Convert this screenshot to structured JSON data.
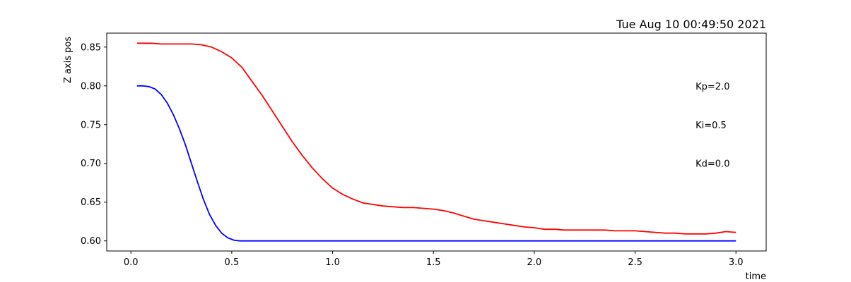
{
  "chart_data": {
    "type": "line",
    "title": "Tue Aug 10 00:49:50 2021",
    "xlabel": "time",
    "ylabel": "Z axis pos",
    "xlim": [
      -0.12,
      3.15
    ],
    "ylim": [
      0.587,
      0.868
    ],
    "xticks": [
      "0.0",
      "0.5",
      "1.0",
      "1.5",
      "2.0",
      "2.5",
      "3.0"
    ],
    "yticks": [
      "0.60",
      "0.65",
      "0.70",
      "0.75",
      "0.80",
      "0.85"
    ],
    "grid": false,
    "annotations": [
      {
        "text": "Kp=2.0",
        "x": 2.8,
        "y": 0.8
      },
      {
        "text": "Ki=0.5",
        "x": 2.8,
        "y": 0.75
      },
      {
        "text": "Kd=0.0",
        "x": 2.8,
        "y": 0.7
      }
    ],
    "series": [
      {
        "color": "#ff0000",
        "x": [
          0.03,
          0.1,
          0.15,
          0.2,
          0.25,
          0.3,
          0.35,
          0.4,
          0.45,
          0.5,
          0.55,
          0.6,
          0.65,
          0.7,
          0.75,
          0.8,
          0.85,
          0.9,
          0.95,
          1.0,
          1.05,
          1.1,
          1.15,
          1.2,
          1.25,
          1.3,
          1.35,
          1.4,
          1.45,
          1.5,
          1.55,
          1.6,
          1.65,
          1.7,
          1.75,
          1.8,
          1.85,
          1.9,
          1.95,
          2.0,
          2.05,
          2.1,
          2.15,
          2.2,
          2.25,
          2.3,
          2.35,
          2.4,
          2.45,
          2.5,
          2.55,
          2.6,
          2.65,
          2.7,
          2.75,
          2.8,
          2.85,
          2.9,
          2.95,
          3.0
        ],
        "y": [
          0.855,
          0.855,
          0.854,
          0.854,
          0.854,
          0.854,
          0.853,
          0.85,
          0.844,
          0.836,
          0.824,
          0.806,
          0.788,
          0.768,
          0.748,
          0.728,
          0.71,
          0.694,
          0.68,
          0.668,
          0.66,
          0.654,
          0.649,
          0.647,
          0.645,
          0.644,
          0.643,
          0.643,
          0.642,
          0.641,
          0.639,
          0.636,
          0.632,
          0.628,
          0.626,
          0.624,
          0.622,
          0.62,
          0.618,
          0.617,
          0.615,
          0.615,
          0.614,
          0.614,
          0.614,
          0.614,
          0.614,
          0.613,
          0.613,
          0.613,
          0.612,
          0.611,
          0.61,
          0.61,
          0.609,
          0.609,
          0.609,
          0.61,
          0.612,
          0.611
        ]
      },
      {
        "color": "#0000ff",
        "x": [
          0.03,
          0.06,
          0.09,
          0.12,
          0.15,
          0.18,
          0.21,
          0.24,
          0.27,
          0.3,
          0.33,
          0.36,
          0.39,
          0.42,
          0.45,
          0.48,
          0.51,
          0.54,
          0.57,
          0.6,
          1.0,
          1.5,
          2.0,
          2.5,
          3.0
        ],
        "y": [
          0.8,
          0.8,
          0.799,
          0.796,
          0.789,
          0.778,
          0.763,
          0.745,
          0.724,
          0.7,
          0.676,
          0.653,
          0.634,
          0.62,
          0.61,
          0.604,
          0.601,
          0.6,
          0.6,
          0.6,
          0.6,
          0.6,
          0.6,
          0.6,
          0.6
        ]
      }
    ]
  }
}
